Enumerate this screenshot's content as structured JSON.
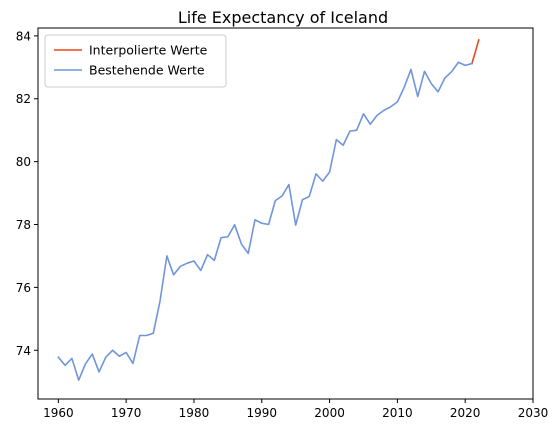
{
  "chart_data": {
    "type": "line",
    "title": "Life Expectancy of Iceland",
    "xlabel": "",
    "ylabel": "",
    "xlim": [
      1957,
      2030
    ],
    "ylim": [
      72.45,
      84.25
    ],
    "xticks": [
      1960,
      1970,
      1980,
      1990,
      2000,
      2010,
      2020,
      2030
    ],
    "yticks": [
      74,
      76,
      78,
      80,
      82,
      84
    ],
    "grid": false,
    "legend_position": "top-left",
    "series": [
      {
        "name": "Interpolierte Werte",
        "color": "#e8491d",
        "x": [
          2021,
          2022
        ],
        "y": [
          83.12,
          83.87
        ]
      },
      {
        "name": "Bestehende Werte",
        "color": "#6f95dc",
        "x": [
          1960,
          1961,
          1962,
          1963,
          1964,
          1965,
          1966,
          1967,
          1968,
          1969,
          1970,
          1971,
          1972,
          1973,
          1974,
          1975,
          1976,
          1977,
          1978,
          1979,
          1980,
          1981,
          1982,
          1983,
          1984,
          1985,
          1986,
          1987,
          1988,
          1989,
          1990,
          1991,
          1992,
          1993,
          1994,
          1995,
          1996,
          1997,
          1998,
          1999,
          2000,
          2001,
          2002,
          2003,
          2004,
          2005,
          2006,
          2007,
          2008,
          2009,
          2010,
          2011,
          2012,
          2013,
          2014,
          2015,
          2016,
          2017,
          2018,
          2019,
          2020,
          2021
        ],
        "y": [
          73.78,
          73.52,
          73.74,
          73.05,
          73.57,
          73.88,
          73.31,
          73.78,
          74.0,
          73.81,
          73.93,
          73.58,
          74.47,
          74.47,
          74.54,
          75.57,
          77.0,
          76.4,
          76.67,
          76.77,
          76.84,
          76.54,
          77.04,
          76.86,
          77.58,
          77.61,
          77.99,
          77.38,
          77.08,
          78.15,
          78.04,
          78.0,
          78.76,
          78.91,
          79.27,
          77.98,
          78.79,
          78.89,
          79.61,
          79.38,
          79.67,
          80.7,
          80.52,
          80.97,
          81.0,
          81.52,
          81.19,
          81.47,
          81.63,
          81.74,
          81.9,
          82.36,
          82.93,
          82.07,
          82.87,
          82.48,
          82.22,
          82.66,
          82.86,
          83.16,
          83.06,
          83.12
        ]
      }
    ]
  }
}
